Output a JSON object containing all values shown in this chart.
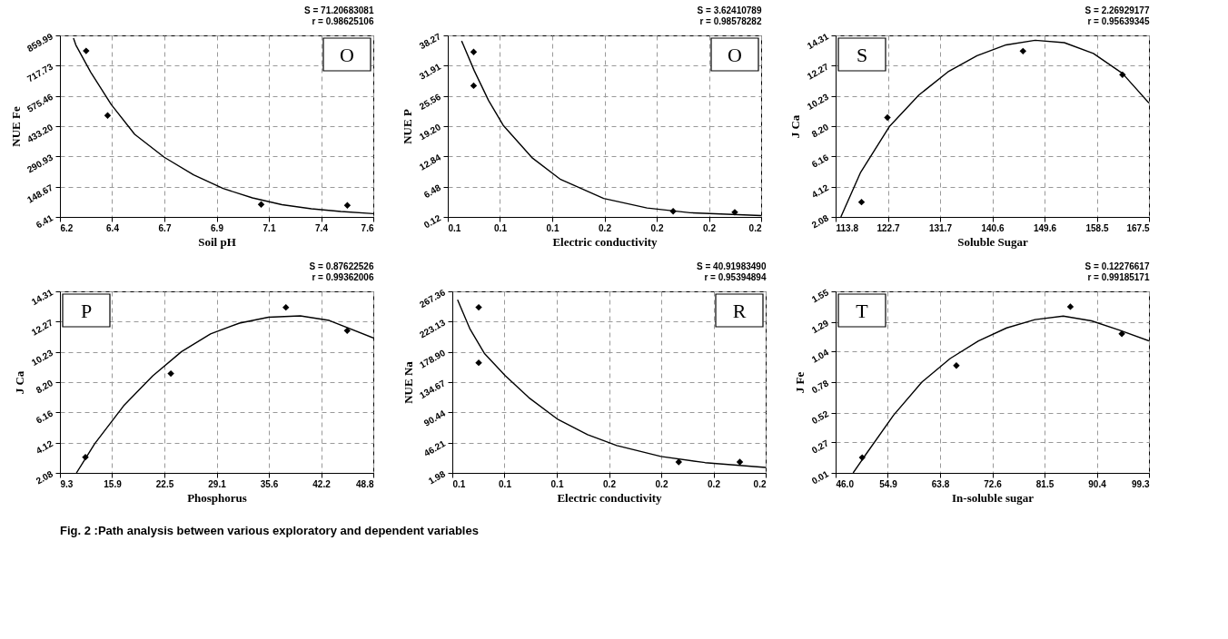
{
  "chart_data": [
    {
      "type": "scatter",
      "xlabel": "Soil pH",
      "ylabel": "NUE Fe",
      "annotations": [
        "O",
        "S = 71.20683081",
        "r = 0.98625106"
      ],
      "xlim": [
        6.2,
        7.6
      ],
      "xticks": [
        6.2,
        {
          "value": 6.4333,
          "label": "6.4"
        },
        {
          "value": 6.6667,
          "label": "6.7"
        },
        6.9,
        {
          "value": 7.1333,
          "label": "7.1"
        },
        {
          "value": 7.3667,
          "label": "7.4"
        },
        7.6
      ],
      "ylim": [
        6.41,
        859.99
      ],
      "yticks": [
        6.41,
        148.67,
        290.93,
        {
          "value": 433.2,
          "label": "433.20"
        },
        575.46,
        717.73,
        859.99
      ],
      "grid": true,
      "series": [
        {
          "marker": "diamond",
          "color": "#000000",
          "x": [
            6.317,
            6.413,
            7.099,
            7.484
          ],
          "values": [
            787,
            483,
            65,
            61
          ]
        },
        {
          "type": "line",
          "marker": "none",
          "color": "#000000",
          "x": [
            6.2605,
            6.271,
            6.337,
            6.429,
            6.534,
            6.666,
            6.797,
            6.929,
            7.06,
            7.192,
            7.323,
            7.455,
            7.6
          ],
          "values": [
            847,
            815,
            688,
            535,
            395,
            287,
            204,
            140,
            96,
            64,
            45,
            32,
            22
          ]
        }
      ]
    },
    {
      "type": "scatter",
      "xlabel": "Electric conductivity",
      "ylabel": "NUE P",
      "annotations": [
        "O",
        "S = 3.62410789",
        "r = 0.98578282"
      ],
      "xlim": [
        0.1,
        0.22
      ],
      "xticks": [
        0.1,
        {
          "value": 0.12,
          "label": "0.1"
        },
        {
          "value": 0.14,
          "label": "0.1"
        },
        {
          "value": 0.16,
          "label": "0.2"
        },
        {
          "value": 0.18,
          "label": "0.2"
        },
        {
          "value": 0.2,
          "label": "0.2"
        },
        {
          "value": 0.22,
          "label": "0.2"
        }
      ],
      "ylim": [
        0.12,
        38.27
      ],
      "yticks": [
        0.12,
        6.48,
        12.84,
        {
          "value": 19.2,
          "label": "19.20"
        },
        25.56,
        31.91,
        38.27
      ],
      "grid": true,
      "series": [
        {
          "marker": "diamond",
          "color": "#000000",
          "x": [
            0.1099,
            0.1099,
            0.1863,
            0.2099
          ],
          "values": [
            34.8,
            27.7,
            1.3,
            1.1
          ]
        },
        {
          "type": "line",
          "marker": "none",
          "color": "#000000",
          "x": [
            0.1053,
            0.1101,
            0.1156,
            0.1212,
            0.1322,
            0.1432,
            0.1597,
            0.1763,
            0.1928,
            0.22
          ],
          "values": [
            37.1,
            30.9,
            24.6,
            19.4,
            12.6,
            8.0,
            4.0,
            2.0,
            1.0,
            0.4
          ]
        }
      ]
    },
    {
      "type": "scatter",
      "xlabel": "Soluble Sugar",
      "ylabel": "J Ca",
      "annotations": [
        "S",
        "S = 2.26929177",
        "r = 0.95639345"
      ],
      "xlim": [
        113.8,
        167.5
      ],
      "xticks": [
        113.8,
        {
          "value": 122.75,
          "label": "122.7"
        },
        {
          "value": 131.7,
          "label": "131.7"
        },
        {
          "value": 140.65,
          "label": "140.6"
        },
        {
          "value": 149.6,
          "label": "149.6"
        },
        {
          "value": 158.55,
          "label": "158.5"
        },
        167.5
      ],
      "ylim": [
        2.08,
        14.31
      ],
      "yticks": [
        2.08,
        4.12,
        6.16,
        {
          "value": 8.2,
          "label": "8.20"
        },
        10.23,
        12.27,
        14.31
      ],
      "grid": true,
      "series": [
        {
          "marker": "diamond",
          "color": "#000000",
          "x": [
            118.24,
            122.68,
            145.91,
            162.96
          ],
          "values": [
            3.08,
            8.78,
            13.25,
            11.66
          ]
        },
        {
          "type": "line",
          "marker": "none",
          "color": "#000000",
          "x": [
            114.7,
            118.09,
            123.07,
            128.06,
            133.04,
            138.03,
            143.01,
            148.0,
            152.99,
            157.97,
            162.96,
            167.5
          ],
          "values": [
            2.08,
            5.09,
            8.2,
            10.29,
            11.85,
            12.94,
            13.67,
            13.98,
            13.82,
            13.09,
            11.75,
            9.75
          ]
        }
      ]
    },
    {
      "type": "scatter",
      "xlabel": "Phosphorus",
      "ylabel": "J Ca",
      "annotations": [
        "P",
        "S = 0.87622526",
        "r = 0.99362006"
      ],
      "xlim": [
        9.3,
        48.8
      ],
      "xticks": [
        9.3,
        {
          "value": 15.883,
          "label": "15.9"
        },
        {
          "value": 22.467,
          "label": "22.5"
        },
        {
          "value": 29.05,
          "label": "29.1"
        },
        {
          "value": 35.633,
          "label": "35.6"
        },
        {
          "value": 42.217,
          "label": "42.2"
        },
        48.8
      ],
      "ylim": [
        2.08,
        14.31
      ],
      "yticks": [
        2.08,
        4.12,
        6.16,
        {
          "value": 8.2,
          "label": "8.20"
        },
        10.23,
        12.27,
        14.31
      ],
      "grid": true,
      "series": [
        {
          "marker": "diamond",
          "color": "#000000",
          "x": [
            12.51,
            23.28,
            37.78,
            45.51
          ],
          "values": [
            3.14,
            8.77,
            13.23,
            11.66
          ]
        },
        {
          "type": "line",
          "marker": "none",
          "color": "#000000",
          "x": [
            11.38,
            13.68,
            17.33,
            20.98,
            24.63,
            28.28,
            31.93,
            35.58,
            39.6,
            43.25,
            48.8
          ],
          "values": [
            2.08,
            4.04,
            6.6,
            8.61,
            10.25,
            11.44,
            12.17,
            12.57,
            12.66,
            12.35,
            11.17
          ]
        }
      ]
    },
    {
      "type": "scatter",
      "xlabel": "Electric conductivity",
      "ylabel": "NUE Na",
      "annotations": [
        "R",
        "S = 40.91983490",
        "r = 0.95394894"
      ],
      "xlim": [
        0.1,
        0.22
      ],
      "xticks": [
        0.1,
        {
          "value": 0.12,
          "label": "0.1"
        },
        {
          "value": 0.14,
          "label": "0.1"
        },
        {
          "value": 0.16,
          "label": "0.2"
        },
        {
          "value": 0.18,
          "label": "0.2"
        },
        {
          "value": 0.2,
          "label": "0.2"
        },
        {
          "value": 0.22,
          "label": "0.2"
        }
      ],
      "ylim": [
        1.98,
        267.36
      ],
      "yticks": [
        1.98,
        46.21,
        90.44,
        134.67,
        {
          "value": 178.9,
          "label": "178.90"
        },
        223.13,
        267.36
      ],
      "grid": true,
      "series": [
        {
          "marker": "diamond",
          "color": "#000000",
          "x": [
            0.1101,
            0.1101,
            0.1867,
            0.2101
          ],
          "values": [
            244,
            163,
            18,
            18
          ]
        },
        {
          "type": "line",
          "marker": "none",
          "color": "#000000",
          "x": [
            0.102,
            0.1068,
            0.1124,
            0.1203,
            0.1293,
            0.1405,
            0.1518,
            0.163,
            0.1799,
            0.1968,
            0.22
          ],
          "values": [
            255,
            212,
            176,
            144,
            112,
            80,
            58,
            42,
            26,
            17,
            10
          ]
        }
      ]
    },
    {
      "type": "scatter",
      "xlabel": "In-soluble sugar",
      "ylabel": "J Fe",
      "annotations": [
        "T",
        "S = 0.12276617",
        "r = 0.99185171",
        "Fig. 2 :Path analysis between various exploratory and dependent variables"
      ],
      "xlim": [
        46.0,
        99.3
      ],
      "xticks": [
        {
          "value": 46.0,
          "label": "46.0"
        },
        {
          "value": 54.883,
          "label": "54.9"
        },
        {
          "value": 63.767,
          "label": "63.8"
        },
        {
          "value": 72.65,
          "label": "72.6"
        },
        {
          "value": 81.533,
          "label": "81.5"
        },
        {
          "value": 90.417,
          "label": "90.4"
        },
        99.3
      ],
      "ylim": [
        0.01,
        1.55
      ],
      "yticks": [
        0.01,
        0.27,
        0.52,
        0.78,
        1.04,
        1.29,
        1.55
      ],
      "grid": true,
      "series": [
        {
          "marker": "diamond",
          "color": "#000000",
          "x": [
            50.52,
            66.54,
            85.93,
            94.68
          ],
          "values": [
            0.14,
            0.92,
            1.42,
            1.19
          ]
        },
        {
          "type": "line",
          "marker": "none",
          "color": "#000000",
          "x": [
            48.98,
            51.05,
            55.86,
            60.67,
            65.48,
            70.29,
            75.1,
            79.91,
            84.72,
            89.53,
            94.34,
            99.3
          ],
          "values": [
            0.01,
            0.16,
            0.5,
            0.78,
            0.98,
            1.13,
            1.24,
            1.31,
            1.34,
            1.3,
            1.22,
            1.13
          ]
        }
      ]
    }
  ]
}
